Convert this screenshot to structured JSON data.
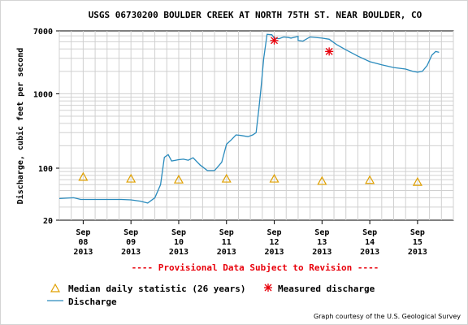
{
  "chart_data": {
    "type": "line",
    "title": "USGS 06730200 BOULDER CREEK AT NORTH 75TH ST. NEAR BOULDER, CO",
    "ylabel": "Discharge, cubic feet per second",
    "y_scale": "log",
    "ylim": [
      20,
      7000
    ],
    "y_ticks": [
      "7000",
      "1000",
      "100",
      "20"
    ],
    "y_tick_values": [
      7000,
      1000,
      100,
      20
    ],
    "x_range": [
      7.5,
      15.75
    ],
    "x_ticks": [
      {
        "x": 8,
        "month": "Sep",
        "day": "08",
        "year": "2013"
      },
      {
        "x": 9,
        "month": "Sep",
        "day": "09",
        "year": "2013"
      },
      {
        "x": 10,
        "month": "Sep",
        "day": "10",
        "year": "2013"
      },
      {
        "x": 11,
        "month": "Sep",
        "day": "11",
        "year": "2013"
      },
      {
        "x": 12,
        "month": "Sep",
        "day": "12",
        "year": "2013"
      },
      {
        "x": 13,
        "month": "Sep",
        "day": "13",
        "year": "2013"
      },
      {
        "x": 14,
        "month": "Sep",
        "day": "14",
        "year": "2013"
      },
      {
        "x": 15,
        "month": "Sep",
        "day": "15",
        "year": "2013"
      }
    ],
    "grid": true,
    "series": [
      {
        "name": "Discharge",
        "color": "#2a8bbd",
        "points": [
          [
            7.5,
            39
          ],
          [
            7.8,
            40
          ],
          [
            7.95,
            38
          ],
          [
            8.5,
            38
          ],
          [
            8.8,
            38
          ],
          [
            9.0,
            37.5
          ],
          [
            9.2,
            36
          ],
          [
            9.35,
            34
          ],
          [
            9.5,
            40
          ],
          [
            9.62,
            60
          ],
          [
            9.7,
            140
          ],
          [
            9.78,
            152
          ],
          [
            9.85,
            125
          ],
          [
            10.0,
            130
          ],
          [
            10.1,
            132
          ],
          [
            10.2,
            128
          ],
          [
            10.3,
            138
          ],
          [
            10.45,
            110
          ],
          [
            10.6,
            93
          ],
          [
            10.75,
            93
          ],
          [
            10.9,
            120
          ],
          [
            11.0,
            210
          ],
          [
            11.1,
            240
          ],
          [
            11.2,
            280
          ],
          [
            11.3,
            275
          ],
          [
            11.45,
            265
          ],
          [
            11.55,
            280
          ],
          [
            11.62,
            300
          ],
          [
            11.68,
            640
          ],
          [
            11.72,
            1150
          ],
          [
            11.78,
            3000
          ],
          [
            11.85,
            6300
          ],
          [
            11.95,
            6200
          ],
          [
            12.0,
            5600
          ],
          [
            12.1,
            5500
          ],
          [
            12.2,
            5800
          ],
          [
            12.3,
            5700
          ],
          [
            12.35,
            5600
          ],
          [
            12.5,
            5900
          ],
          [
            12.5,
            5200
          ],
          [
            12.6,
            5100
          ],
          [
            12.75,
            5800
          ],
          [
            13.0,
            5600
          ],
          [
            13.15,
            5400
          ],
          [
            13.3,
            4600
          ],
          [
            13.5,
            3900
          ],
          [
            13.75,
            3200
          ],
          [
            14.0,
            2700
          ],
          [
            14.25,
            2450
          ],
          [
            14.5,
            2250
          ],
          [
            14.75,
            2150
          ],
          [
            14.9,
            2000
          ],
          [
            15.0,
            1950
          ],
          [
            15.1,
            2000
          ],
          [
            15.2,
            2400
          ],
          [
            15.3,
            3300
          ],
          [
            15.38,
            3700
          ],
          [
            15.45,
            3600
          ]
        ]
      },
      {
        "name": "Median daily statistic (26 years)",
        "marker": "triangle",
        "color": "#e0a000",
        "points": [
          [
            8,
            76
          ],
          [
            9,
            72
          ],
          [
            10,
            70
          ],
          [
            11,
            72
          ],
          [
            12,
            72
          ],
          [
            13,
            67
          ],
          [
            14,
            69
          ],
          [
            15,
            65
          ]
        ]
      },
      {
        "name": "Measured discharge",
        "marker": "asterisk",
        "color": "#e8000b",
        "points": [
          [
            12.0,
            5200
          ],
          [
            13.15,
            3700
          ]
        ]
      }
    ]
  },
  "provisional_note": "---- Provisional Data Subject to Revision ----",
  "legend": {
    "median_label": "Median daily statistic (26 years)",
    "measured_label": "Measured discharge",
    "discharge_label": "Discharge"
  },
  "credit": "Graph courtesy of the U.S. Geological Survey"
}
